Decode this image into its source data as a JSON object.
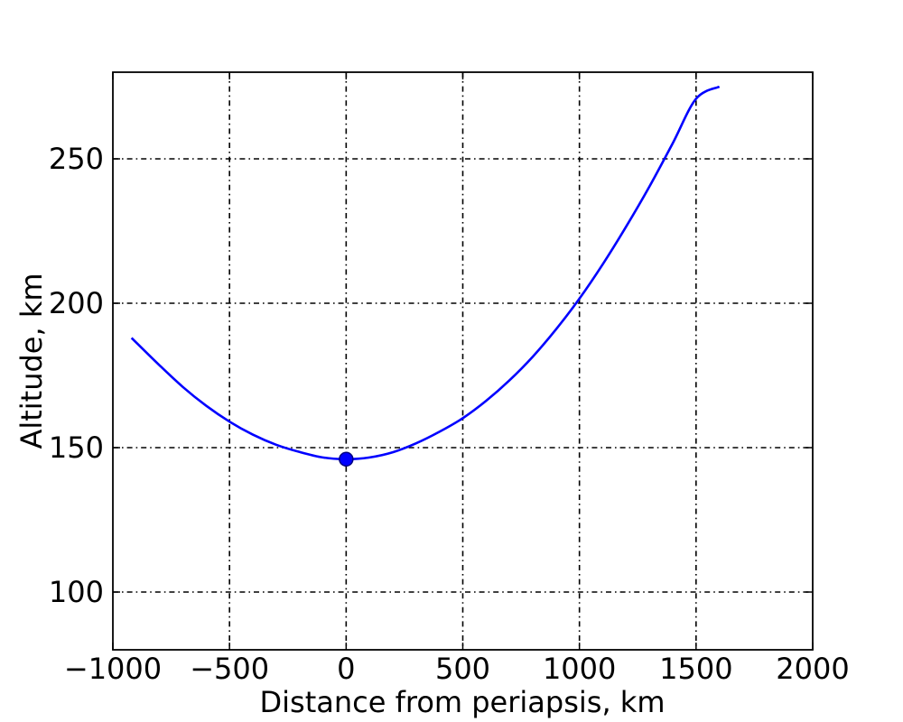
{
  "chart_data": {
    "type": "line",
    "title": "",
    "xlabel": "Distance from periapsis, km",
    "ylabel": "Altitude, km",
    "xlim": [
      -1000,
      2000
    ],
    "ylim": [
      80,
      280
    ],
    "xticks": [
      -1000,
      -500,
      0,
      500,
      1000,
      1500,
      2000
    ],
    "xtick_labels": [
      "−1000",
      "−500",
      "0",
      "500",
      "1000",
      "1500",
      "2000"
    ],
    "yticks": [
      100,
      150,
      200,
      250
    ],
    "ytick_labels": [
      "100",
      "150",
      "200",
      "250"
    ],
    "grid": true,
    "legend": "none",
    "series": [
      {
        "color": "#0000ff",
        "x": [
          -920,
          -800,
          -700,
          -600,
          -500,
          -400,
          -300,
          -200,
          -100,
          0,
          100,
          200,
          300,
          400,
          500,
          600,
          700,
          800,
          900,
          1000,
          1100,
          1200,
          1300,
          1400,
          1500,
          1600
        ],
        "y": [
          188,
          178.5,
          171,
          164.5,
          159,
          154.5,
          151,
          148.5,
          146.6,
          146,
          146.6,
          148.4,
          151.5,
          155.5,
          160.2,
          166.2,
          173.3,
          181.5,
          191,
          201.6,
          213.5,
          226.5,
          240.4,
          255.4,
          270.8,
          275
        ]
      }
    ],
    "markers": [
      {
        "x": 0,
        "y": 146,
        "color": "#0000ff"
      }
    ]
  }
}
